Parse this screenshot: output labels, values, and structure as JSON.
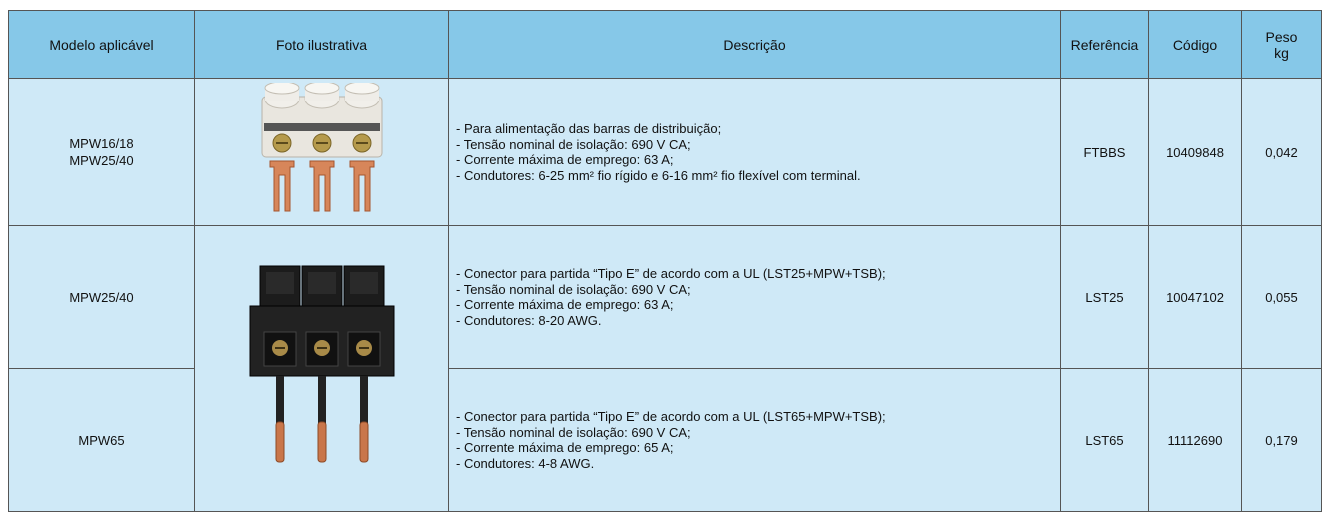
{
  "table": {
    "header": [
      "Modelo aplicável",
      "Foto ilustrativa",
      "Descrição",
      "Referência",
      "Código",
      "Peso",
      "kg"
    ],
    "rows": [
      {
        "modelo": [
          "MPW16/18",
          "MPW25/40"
        ],
        "descricao": [
          "- Para alimentação das barras de distribuição;",
          "- Tensão nominal de isolação: 690 V CA;",
          "- Corrente máxima de emprego: 63 A;",
          "- Condutores: 6-25 mm² fio rígido e 6-16 mm² fio flexível com terminal."
        ],
        "referencia": "FTBBS",
        "codigo": "10409848",
        "peso": "0,042"
      },
      {
        "modelo": [
          "MPW25/40"
        ],
        "descricao": [
          "- Conector para partida “Tipo E” de acordo com a UL (LST25+MPW+TSB);",
          "- Tensão nominal de isolação: 690 V CA;",
          "- Corrente máxima de emprego: 63 A;",
          "- Condutores: 8-20 AWG."
        ],
        "referencia": "LST25",
        "codigo": "10047102",
        "peso": "0,055"
      },
      {
        "modelo": [
          "MPW65"
        ],
        "descricao": [
          "- Conector para partida “Tipo E” de acordo com a UL (LST65+MPW+TSB);",
          "- Tensão nominal de isolação: 690 V CA;",
          "- Corrente máxima de emprego: 65 A;",
          "- Condutores: 4-8 AWG."
        ],
        "referencia": "LST65",
        "codigo": "11112690",
        "peso": "0,179"
      }
    ]
  }
}
